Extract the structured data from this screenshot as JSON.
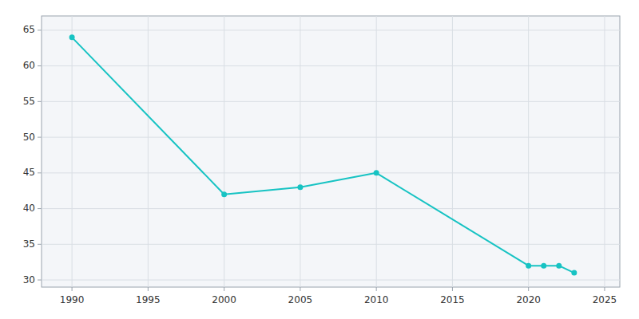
{
  "chart_data": {
    "type": "line",
    "x": [
      1990,
      2000,
      2005,
      2010,
      2020,
      2021,
      2022,
      2023
    ],
    "values": [
      64,
      42,
      43,
      45,
      32,
      32,
      32,
      31
    ],
    "color": "#17c3c3",
    "marker": "circle",
    "xlim": [
      1988,
      2026
    ],
    "ylim": [
      29,
      67
    ],
    "xticks": [
      1990,
      1995,
      2000,
      2005,
      2010,
      2015,
      2020,
      2025
    ],
    "yticks": [
      30,
      35,
      40,
      45,
      50,
      55,
      60,
      65
    ],
    "grid": true
  }
}
